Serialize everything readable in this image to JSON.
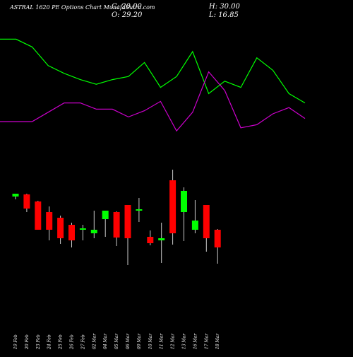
{
  "header": {
    "title": "ASTRAL 1620 PE Options Chart MunafaSutra.com",
    "close_label": "C: 20.00",
    "open_label": "O: 29.20",
    "high_label": "H: 30.00",
    "low_label": "L: 16.85"
  },
  "colors": {
    "background": "#000000",
    "up": "#00ff00",
    "down": "#ff0000",
    "upper_line": "#00ff00",
    "lower_line": "#cc00cc",
    "text": "#ffffff"
  },
  "chart_data": [
    {
      "type": "line",
      "series": [
        {
          "color": "#00ff00",
          "values": [
            93,
            93,
            88,
            76,
            71,
            67,
            64,
            67,
            69,
            78,
            62,
            69,
            85,
            58,
            66,
            62,
            81,
            73,
            58,
            52
          ]
        },
        {
          "color": "#cc00cc",
          "values": [
            40,
            40,
            40,
            46,
            52,
            52,
            48,
            48,
            43,
            47,
            53,
            34,
            46,
            72,
            60,
            36,
            38,
            45,
            49,
            42
          ]
        }
      ],
      "ylim": [
        0,
        100
      ]
    },
    {
      "type": "candlestick",
      "categories": [
        "19 Feb",
        "20 Feb",
        "23 Feb",
        "24 Feb",
        "25 Feb",
        "26 Feb",
        "27 Feb",
        "02 Mar",
        "04 Mar",
        "05 Mar",
        "06 Mar",
        "09 Mar",
        "10 Mar",
        "11 Mar",
        "12 Mar",
        "13 Mar",
        "16 Mar",
        "17 Mar",
        "18 Mar"
      ],
      "open": [
        172,
        175,
        165,
        150,
        142,
        132,
        125,
        120,
        140,
        150,
        160,
        152,
        115,
        110,
        195,
        150,
        125,
        160,
        125
      ],
      "high": [
        176,
        176,
        166,
        158,
        145,
        135,
        132,
        152,
        150,
        151,
        160,
        170,
        124,
        135,
        210,
        185,
        167,
        160,
        126
      ],
      "low": [
        168,
        150,
        125,
        110,
        105,
        100,
        110,
        113,
        115,
        102,
        75,
        136,
        103,
        78,
        104,
        109,
        120,
        94,
        77
      ],
      "close": [
        176,
        155,
        125,
        125,
        113,
        110,
        127,
        125,
        152,
        114,
        113,
        154,
        106,
        113,
        120,
        180,
        138,
        113,
        100
      ],
      "ylim": [
        0,
        260
      ]
    }
  ]
}
